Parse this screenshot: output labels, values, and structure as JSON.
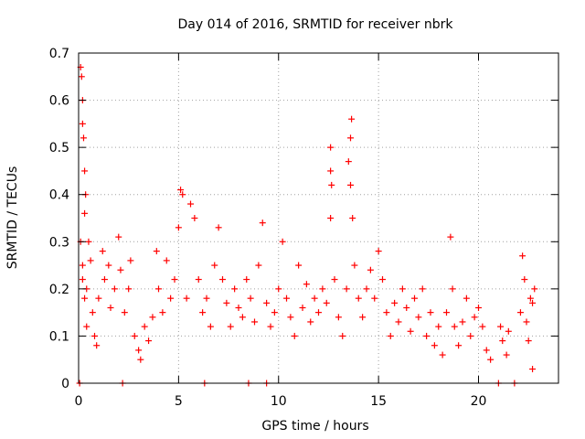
{
  "chart_data": {
    "type": "scatter",
    "title": "Day 014 of 2016, SRMTID for receiver nbrk",
    "xlabel": "GPS time / hours",
    "ylabel": "SRMTID / TECUs",
    "xlim": [
      0,
      24
    ],
    "ylim": [
      0,
      0.7
    ],
    "x_ticks": [
      "0",
      "5",
      "10",
      "15",
      "20"
    ],
    "y_ticks": [
      "0",
      "0.1",
      "0.2",
      "0.3",
      "0.4",
      "0.5",
      "0.6",
      "0.7"
    ],
    "grid": true,
    "marker": "plus",
    "color": "#ff0000",
    "series": [
      {
        "name": "SRMTID",
        "points": [
          [
            0.1,
            0.67
          ],
          [
            0.15,
            0.65
          ],
          [
            0.2,
            0.6
          ],
          [
            0.2,
            0.55
          ],
          [
            0.25,
            0.52
          ],
          [
            0.3,
            0.45
          ],
          [
            0.35,
            0.4
          ],
          [
            0.3,
            0.36
          ],
          [
            0.1,
            0.3
          ],
          [
            0.2,
            0.25
          ],
          [
            0.2,
            0.22
          ],
          [
            0.3,
            0.18
          ],
          [
            0.4,
            0.2
          ],
          [
            0.5,
            0.3
          ],
          [
            0.6,
            0.26
          ],
          [
            0.4,
            0.12
          ],
          [
            0.7,
            0.15
          ],
          [
            0.8,
            0.1
          ],
          [
            0.9,
            0.08
          ],
          [
            1.0,
            0.18
          ],
          [
            1.2,
            0.28
          ],
          [
            1.3,
            0.22
          ],
          [
            1.5,
            0.25
          ],
          [
            1.6,
            0.16
          ],
          [
            1.8,
            0.2
          ],
          [
            2.0,
            0.31
          ],
          [
            2.1,
            0.24
          ],
          [
            2.3,
            0.15
          ],
          [
            2.5,
            0.2
          ],
          [
            2.6,
            0.26
          ],
          [
            2.8,
            0.1
          ],
          [
            3.0,
            0.07
          ],
          [
            3.1,
            0.05
          ],
          [
            3.3,
            0.12
          ],
          [
            3.5,
            0.09
          ],
          [
            3.7,
            0.14
          ],
          [
            3.9,
            0.28
          ],
          [
            4.0,
            0.2
          ],
          [
            4.2,
            0.15
          ],
          [
            4.4,
            0.26
          ],
          [
            4.6,
            0.18
          ],
          [
            4.8,
            0.22
          ],
          [
            5.0,
            0.33
          ],
          [
            5.1,
            0.41
          ],
          [
            5.2,
            0.4
          ],
          [
            5.4,
            0.18
          ],
          [
            5.6,
            0.38
          ],
          [
            5.8,
            0.35
          ],
          [
            6.0,
            0.22
          ],
          [
            6.2,
            0.15
          ],
          [
            6.4,
            0.18
          ],
          [
            6.6,
            0.12
          ],
          [
            6.8,
            0.25
          ],
          [
            7.0,
            0.33
          ],
          [
            7.2,
            0.22
          ],
          [
            7.4,
            0.17
          ],
          [
            7.6,
            0.12
          ],
          [
            7.8,
            0.2
          ],
          [
            8.0,
            0.16
          ],
          [
            8.2,
            0.14
          ],
          [
            8.4,
            0.22
          ],
          [
            8.6,
            0.18
          ],
          [
            8.8,
            0.13
          ],
          [
            9.0,
            0.25
          ],
          [
            9.2,
            0.34
          ],
          [
            9.4,
            0.17
          ],
          [
            9.6,
            0.12
          ],
          [
            9.8,
            0.15
          ],
          [
            10.0,
            0.2
          ],
          [
            10.2,
            0.3
          ],
          [
            10.4,
            0.18
          ],
          [
            10.6,
            0.14
          ],
          [
            10.8,
            0.1
          ],
          [
            11.0,
            0.25
          ],
          [
            11.2,
            0.16
          ],
          [
            11.4,
            0.21
          ],
          [
            11.6,
            0.13
          ],
          [
            11.8,
            0.18
          ],
          [
            12.0,
            0.15
          ],
          [
            12.2,
            0.2
          ],
          [
            12.4,
            0.17
          ],
          [
            12.6,
            0.5
          ],
          [
            12.6,
            0.45
          ],
          [
            12.65,
            0.42
          ],
          [
            12.6,
            0.35
          ],
          [
            12.8,
            0.22
          ],
          [
            13.0,
            0.14
          ],
          [
            13.2,
            0.1
          ],
          [
            13.4,
            0.2
          ],
          [
            13.5,
            0.47
          ],
          [
            13.6,
            0.52
          ],
          [
            13.65,
            0.56
          ],
          [
            13.6,
            0.42
          ],
          [
            13.7,
            0.35
          ],
          [
            13.8,
            0.25
          ],
          [
            14.0,
            0.18
          ],
          [
            14.2,
            0.14
          ],
          [
            14.4,
            0.2
          ],
          [
            14.6,
            0.24
          ],
          [
            14.8,
            0.18
          ],
          [
            15.0,
            0.28
          ],
          [
            15.2,
            0.22
          ],
          [
            15.4,
            0.15
          ],
          [
            15.6,
            0.1
          ],
          [
            15.8,
            0.17
          ],
          [
            16.0,
            0.13
          ],
          [
            16.2,
            0.2
          ],
          [
            16.4,
            0.16
          ],
          [
            16.6,
            0.11
          ],
          [
            16.8,
            0.18
          ],
          [
            17.0,
            0.14
          ],
          [
            17.2,
            0.2
          ],
          [
            17.4,
            0.1
          ],
          [
            17.6,
            0.15
          ],
          [
            17.8,
            0.08
          ],
          [
            18.0,
            0.12
          ],
          [
            18.2,
            0.06
          ],
          [
            18.4,
            0.15
          ],
          [
            18.6,
            0.31
          ],
          [
            18.7,
            0.2
          ],
          [
            18.8,
            0.12
          ],
          [
            19.0,
            0.08
          ],
          [
            19.2,
            0.13
          ],
          [
            19.4,
            0.18
          ],
          [
            19.6,
            0.1
          ],
          [
            19.8,
            0.14
          ],
          [
            20.0,
            0.16
          ],
          [
            20.2,
            0.12
          ],
          [
            20.4,
            0.07
          ],
          [
            20.6,
            0.05
          ],
          [
            21.1,
            0.12
          ],
          [
            21.2,
            0.09
          ],
          [
            21.4,
            0.06
          ],
          [
            21.5,
            0.11
          ],
          [
            22.1,
            0.15
          ],
          [
            22.2,
            0.27
          ],
          [
            22.3,
            0.22
          ],
          [
            22.4,
            0.13
          ],
          [
            22.5,
            0.09
          ],
          [
            22.6,
            0.18
          ],
          [
            22.7,
            0.17
          ],
          [
            22.8,
            0.2
          ],
          [
            22.7,
            0.03
          ],
          [
            0.05,
            0.0
          ],
          [
            2.2,
            0.0
          ],
          [
            6.3,
            0.0
          ],
          [
            8.5,
            0.0
          ],
          [
            9.4,
            0.0
          ],
          [
            21.0,
            0.0
          ],
          [
            21.8,
            0.0
          ]
        ]
      }
    ]
  }
}
